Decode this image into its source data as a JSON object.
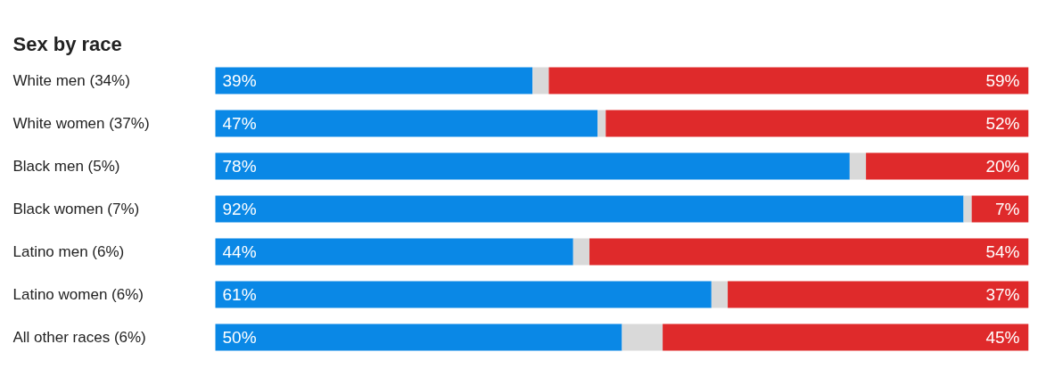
{
  "chart_data": {
    "type": "bar",
    "orientation": "horizontal",
    "stacked": true,
    "title": "Sex by race",
    "categories": [
      "White men (34%)",
      "White women (37%)",
      "Black men (5%)",
      "Black women (7%)",
      "Latino men (6%)",
      "Latino women (6%)",
      "All other races (6%)"
    ],
    "series": [
      {
        "color": "#0a88e6",
        "values": [
          39,
          47,
          78,
          92,
          44,
          61,
          50
        ],
        "value_labels": [
          "39%",
          "47%",
          "78%",
          "92%",
          "44%",
          "61%",
          "50%"
        ]
      },
      {
        "color": "#d9d9d9",
        "values": [
          2,
          1,
          2,
          1,
          2,
          2,
          5
        ]
      },
      {
        "color": "#df2a2b",
        "values": [
          59,
          52,
          20,
          7,
          54,
          37,
          45
        ],
        "value_labels": [
          "59%",
          "52%",
          "20%",
          "7%",
          "54%",
          "37%",
          "45%"
        ]
      }
    ],
    "grid": false,
    "tick_labels": false
  }
}
